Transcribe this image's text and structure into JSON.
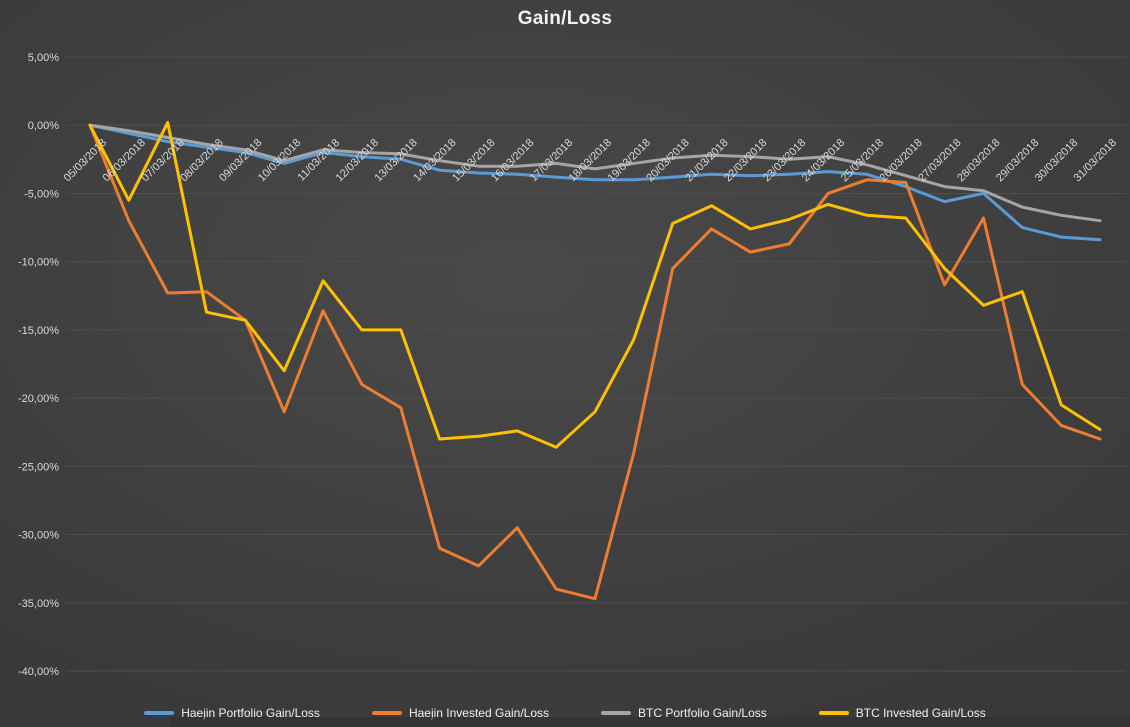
{
  "chart": {
    "title": "Gain/Loss",
    "colors": {
      "background": "#3e3e3e",
      "grid": "#4e4e4e",
      "axis_text": "#d9d9d9",
      "title_text": "#f2f2f2",
      "legend_text": "#f0f0f0"
    }
  },
  "chart_data": {
    "type": "line",
    "title": "Gain/Loss",
    "grid": true,
    "legend_position": "bottom",
    "ylim": [
      -40,
      5
    ],
    "y_tick_step": 5,
    "y_ticks": [
      {
        "value": 5,
        "label": "5,00%"
      },
      {
        "value": 0,
        "label": "0,00%"
      },
      {
        "value": -5,
        "label": "-5,00%"
      },
      {
        "value": -10,
        "label": "-10,00%"
      },
      {
        "value": -15,
        "label": "-15,00%"
      },
      {
        "value": -20,
        "label": "-20,00%"
      },
      {
        "value": -25,
        "label": "-25,00%"
      },
      {
        "value": -30,
        "label": "-30,00%"
      },
      {
        "value": -35,
        "label": "-35,00%"
      },
      {
        "value": -40,
        "label": "-40,00%"
      }
    ],
    "x": [
      "05/03/2018",
      "06/03/2018",
      "07/03/2018",
      "08/03/2018",
      "09/03/2018",
      "10/03/2018",
      "11/03/2018",
      "12/03/2018",
      "13/03/2018",
      "14/03/2018",
      "15/03/2018",
      "16/03/2018",
      "17/03/2018",
      "18/03/2018",
      "19/03/2018",
      "20/03/2018",
      "21/03/2018",
      "22/03/2018",
      "23/03/2018",
      "24/03/2018",
      "25/03/2018",
      "26/03/2018",
      "27/03/2018",
      "28/03/2018",
      "29/03/2018",
      "30/03/2018",
      "31/03/2018"
    ],
    "series": [
      {
        "name": "Haejin Portfolio Gain/Loss",
        "color": "#5B9BD5",
        "width": 3,
        "values": [
          0,
          -0.6,
          -1.2,
          -1.6,
          -2.0,
          -2.8,
          -2.0,
          -2.3,
          -2.5,
          -3.3,
          -3.5,
          -3.6,
          -3.8,
          -4.0,
          -4.0,
          -3.8,
          -3.6,
          -3.7,
          -3.6,
          -3.4,
          -3.6,
          -4.5,
          -5.6,
          -5.0,
          -7.5,
          -8.2,
          -8.4
        ]
      },
      {
        "name": "Haejin Invested Gain/Loss",
        "color": "#ED7D31",
        "width": 3,
        "values": [
          0,
          -7.0,
          -12.3,
          -12.2,
          -14.3,
          -21.0,
          -13.6,
          -19.0,
          -20.7,
          -31.0,
          -32.3,
          -29.5,
          -34.0,
          -34.7,
          -24.0,
          -10.5,
          -7.6,
          -9.3,
          -8.7,
          -5.0,
          -4.0,
          -4.2,
          -11.7,
          -6.8,
          -19.0,
          -22.0,
          -23.0
        ]
      },
      {
        "name": "BTC Portfolio Gain/Loss",
        "color": "#A5A5A5",
        "width": 3,
        "values": [
          0,
          -0.4,
          -0.9,
          -1.4,
          -1.8,
          -2.6,
          -1.8,
          -2.0,
          -2.1,
          -2.6,
          -3.0,
          -3.0,
          -2.8,
          -3.2,
          -2.8,
          -2.4,
          -2.2,
          -2.3,
          -2.5,
          -2.3,
          -2.9,
          -3.7,
          -4.5,
          -4.8,
          -6.0,
          -6.6,
          -7.0
        ]
      },
      {
        "name": "BTC Invested Gain/Loss",
        "color": "#FFC000",
        "width": 3,
        "values": [
          0,
          -5.5,
          0.2,
          -13.7,
          -14.3,
          -18.0,
          -11.4,
          -15.0,
          -15.0,
          -23.0,
          -22.8,
          -22.4,
          -23.6,
          -21.0,
          -15.7,
          -7.2,
          -5.9,
          -7.6,
          -6.9,
          -5.8,
          -6.6,
          -6.8,
          -10.5,
          -13.2,
          -12.2,
          -20.5,
          -22.3
        ]
      }
    ]
  }
}
